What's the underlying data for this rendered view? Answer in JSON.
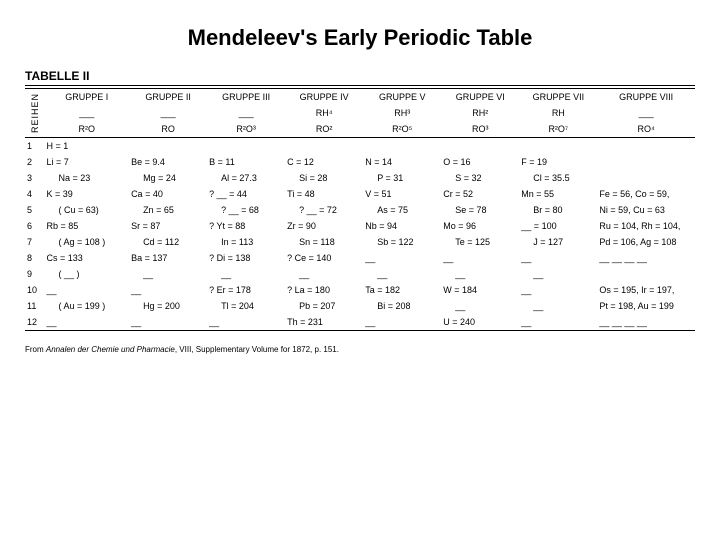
{
  "title": "Mendeleev's Early Periodic Table",
  "tabelle": "TABELLE II",
  "reihen": "REIHEN",
  "headers": [
    "GRUPPE I",
    "GRUPPE II",
    "GRUPPE III",
    "GRUPPE IV",
    "GRUPPE V",
    "GRUPPE VI",
    "GRUPPE VII",
    "GRUPPE VIII"
  ],
  "hyd": [
    "",
    "",
    "",
    "RH⁴",
    "RH³",
    "RH²",
    "RH",
    ""
  ],
  "oxide": [
    "R²O",
    "RO",
    "R²O³",
    "RO²",
    "R²O⁵",
    "RO³",
    "R²O⁷",
    "RO⁴"
  ],
  "showDash": [
    true,
    true,
    true,
    false,
    false,
    false,
    false,
    true
  ],
  "rows": [
    {
      "n": "1",
      "c": [
        "H = 1",
        "",
        "",
        "",
        "",
        "",
        "",
        ""
      ]
    },
    {
      "n": "2",
      "c": [
        "Li = 7",
        "Be = 9.4",
        "B = 11",
        "C = 12",
        "N = 14",
        "O = 16",
        "F = 19",
        ""
      ]
    },
    {
      "n": "3",
      "c": [
        "Na = 23",
        "Mg = 24",
        "Al = 27.3",
        "Si = 28",
        "P = 31",
        "S = 32",
        "Cl = 35.5",
        ""
      ]
    },
    {
      "n": "4",
      "c": [
        "K = 39",
        "Ca = 40",
        "? __ = 44",
        "Ti = 48",
        "V = 51",
        "Cr = 52",
        "Mn = 55",
        "Fe = 56, Co = 59,"
      ]
    },
    {
      "n": "5",
      "c": [
        "( Cu = 63)",
        "Zn = 65",
        "? __ = 68",
        "? __ = 72",
        "As = 75",
        "Se = 78",
        "Br = 80",
        "Ni = 59, Cu = 63"
      ]
    },
    {
      "n": "6",
      "c": [
        "Rb = 85",
        "Sr = 87",
        "? Yt = 88",
        "Zr = 90",
        "Nb = 94",
        "Mo = 96",
        "__ = 100",
        "Ru = 104, Rh = 104,"
      ]
    },
    {
      "n": "7",
      "c": [
        "( Ag = 108 )",
        "Cd = 112",
        "In = 113",
        "Sn = 118",
        "Sb = 122",
        "Te = 125",
        "J = 127",
        "Pd = 106, Ag = 108"
      ]
    },
    {
      "n": "8",
      "c": [
        "Cs = 133",
        "Ba = 137",
        "? Di = 138",
        "? Ce = 140",
        "__",
        "__",
        "__",
        "__ __ __ __"
      ]
    },
    {
      "n": "9",
      "c": [
        "( __ )",
        "__",
        "__",
        "__",
        "__",
        "__",
        "__",
        ""
      ]
    },
    {
      "n": "10",
      "c": [
        "__",
        "__",
        "? Er = 178",
        "? La = 180",
        "Ta = 182",
        "W = 184",
        "__",
        "Os = 195, Ir = 197,"
      ]
    },
    {
      "n": "11",
      "c": [
        "( Au = 199 )",
        "Hg = 200",
        "Tl = 204",
        "Pb = 207",
        "Bi = 208",
        "__",
        "__",
        "Pt = 198, Au = 199"
      ]
    },
    {
      "n": "12",
      "c": [
        "__",
        "__",
        "__",
        "Th = 231",
        "__",
        "U = 240",
        "__",
        "__ __ __ __"
      ]
    }
  ],
  "source_prefix": "From ",
  "source_em": "Annalen der Chemie und Pharmacie",
  "source_suffix": ", VIII, Supplementary Volume for 1872, p. 151.",
  "colors": {
    "bg": "#ffffff",
    "text": "#000000",
    "line": "#000000"
  }
}
